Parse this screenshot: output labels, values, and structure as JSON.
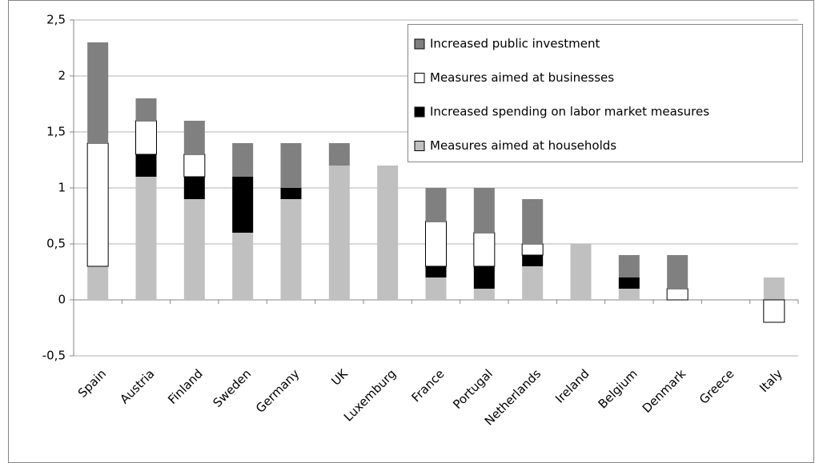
{
  "chart_data": {
    "type": "stacked-bar",
    "categories": [
      "Spain",
      "Austria",
      "Finland",
      "Sweden",
      "Germany",
      "UK",
      "Luxemburg",
      "France",
      "Portugal",
      "Netherlands",
      "Ireland",
      "Belgium",
      "Denmark",
      "Greece",
      "Italy"
    ],
    "series": [
      {
        "name": "Measures aimed at households",
        "color": "#c0c0c0",
        "values": [
          0.3,
          1.1,
          0.9,
          0.6,
          0.9,
          1.2,
          1.2,
          0.2,
          0.1,
          0.3,
          0.5,
          0.1,
          0,
          0,
          0.2
        ]
      },
      {
        "name": "Increased spending on labor market measures",
        "color": "#000000",
        "values": [
          0,
          0.2,
          0.2,
          0.5,
          0.1,
          0,
          0,
          0.1,
          0.2,
          0.1,
          0,
          0.1,
          0,
          0,
          0
        ]
      },
      {
        "name": "Measures aimed at businesses",
        "color": "#ffffff",
        "values": [
          1.1,
          0.3,
          0.2,
          0,
          0,
          0,
          0,
          0.4,
          0.3,
          0.1,
          0,
          0,
          0.1,
          0,
          -0.2
        ]
      },
      {
        "name": "Increased public investment",
        "color": "#808080",
        "values": [
          0.9,
          0.2,
          0.3,
          0.3,
          0.4,
          0.2,
          0,
          0.3,
          0.4,
          0.4,
          0,
          0.2,
          0.3,
          0,
          0
        ]
      }
    ],
    "ylim": [
      -0.5,
      2.5
    ],
    "yticks": [
      {
        "value": -0.5,
        "label": "-0,5"
      },
      0,
      {
        "value": 0.5,
        "label": "0,5"
      },
      1,
      {
        "value": 1.5,
        "label": "1,5"
      },
      2,
      {
        "value": 2.5,
        "label": "2,5"
      }
    ],
    "grid": true,
    "legend": "top-right"
  }
}
